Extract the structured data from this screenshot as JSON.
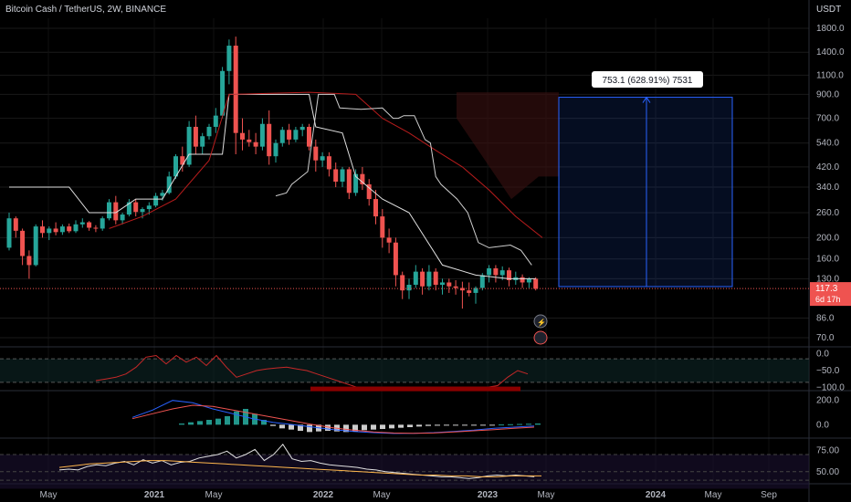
{
  "header": {
    "symbol_title": "Bitcoin Cash / TetherUS, 2W, BINANCE",
    "currency": "USDT"
  },
  "colors": {
    "background": "#000000",
    "up": "#26a69a",
    "down": "#ef5350",
    "grid": "#1a1a1a",
    "axis_text": "#b2b5be",
    "ichimoku_base": "#e0e0e0",
    "ichimoku_red": "#b71c1c",
    "projection": "#2962ff"
  },
  "chart_data": [
    {
      "type": "candlestick",
      "name": "price",
      "y_scale": "log",
      "y_ticks": [
        "1800.0",
        "1400.0",
        "1100.0",
        "900.0",
        "700.0",
        "540.0",
        "420.0",
        "340.0",
        "260.0",
        "200.0",
        "160.0",
        "130.0",
        "86.0",
        "70.0"
      ],
      "x_ticks": [
        "May",
        "2021",
        "May",
        "2022",
        "May",
        "2023",
        "May",
        "2024",
        "May",
        "Sep"
      ],
      "candles": [
        [
          180,
          260,
          175,
          245
        ],
        [
          245,
          250,
          200,
          215
        ],
        [
          215,
          220,
          150,
          165
        ],
        [
          165,
          175,
          130,
          150
        ],
        [
          150,
          230,
          148,
          225
        ],
        [
          225,
          240,
          200,
          210
        ],
        [
          210,
          225,
          195,
          220
        ],
        [
          220,
          235,
          205,
          212
        ],
        [
          212,
          230,
          206,
          225
        ],
        [
          225,
          232,
          210,
          214
        ],
        [
          214,
          240,
          210,
          230
        ],
        [
          230,
          245,
          222,
          235
        ],
        [
          235,
          238,
          215,
          222
        ],
        [
          222,
          228,
          212,
          220
        ],
        [
          220,
          250,
          215,
          245
        ],
        [
          245,
          300,
          240,
          290
        ],
        [
          290,
          310,
          230,
          240
        ],
        [
          240,
          260,
          230,
          255
        ],
        [
          255,
          300,
          250,
          290
        ],
        [
          290,
          300,
          250,
          262
        ],
        [
          262,
          275,
          245,
          270
        ],
        [
          270,
          290,
          255,
          280
        ],
        [
          280,
          320,
          275,
          310
        ],
        [
          310,
          330,
          295,
          320
        ],
        [
          320,
          400,
          315,
          380
        ],
        [
          380,
          480,
          370,
          470
        ],
        [
          470,
          520,
          400,
          430
        ],
        [
          430,
          680,
          420,
          640
        ],
        [
          640,
          720,
          480,
          520
        ],
        [
          520,
          600,
          480,
          580
        ],
        [
          580,
          660,
          560,
          640
        ],
        [
          640,
          780,
          600,
          720
        ],
        [
          720,
          1200,
          700,
          1150
        ],
        [
          1150,
          1600,
          1000,
          1500
        ],
        [
          1500,
          1650,
          480,
          600
        ],
        [
          600,
          700,
          500,
          560
        ],
        [
          560,
          620,
          520,
          545
        ],
        [
          545,
          600,
          480,
          520
        ],
        [
          520,
          700,
          500,
          660
        ],
        [
          660,
          760,
          430,
          470
        ],
        [
          470,
          560,
          440,
          540
        ],
        [
          540,
          640,
          520,
          620
        ],
        [
          620,
          660,
          530,
          560
        ],
        [
          560,
          640,
          545,
          620
        ],
        [
          620,
          660,
          580,
          640
        ],
        [
          640,
          660,
          500,
          520
        ],
        [
          520,
          560,
          400,
          450
        ],
        [
          450,
          490,
          420,
          470
        ],
        [
          470,
          490,
          380,
          410
        ],
        [
          410,
          440,
          340,
          360
        ],
        [
          360,
          420,
          340,
          410
        ],
        [
          410,
          420,
          300,
          320
        ],
        [
          320,
          410,
          310,
          390
        ],
        [
          390,
          420,
          330,
          350
        ],
        [
          350,
          370,
          280,
          300
        ],
        [
          300,
          330,
          230,
          250
        ],
        [
          250,
          270,
          180,
          200
        ],
        [
          200,
          220,
          170,
          190
        ],
        [
          190,
          200,
          120,
          135
        ],
        [
          135,
          140,
          105,
          115
        ],
        [
          115,
          130,
          105,
          122
        ],
        [
          122,
          150,
          118,
          140
        ],
        [
          140,
          145,
          110,
          120
        ],
        [
          120,
          150,
          115,
          140
        ],
        [
          140,
          145,
          115,
          122
        ],
        [
          122,
          130,
          110,
          125
        ],
        [
          125,
          130,
          112,
          120
        ],
        [
          120,
          128,
          110,
          118
        ],
        [
          118,
          126,
          95,
          115
        ],
        [
          115,
          125,
          108,
          112
        ],
        [
          112,
          120,
          100,
          118
        ],
        [
          118,
          138,
          115,
          135
        ],
        [
          135,
          150,
          125,
          145
        ],
        [
          145,
          150,
          125,
          135
        ],
        [
          135,
          148,
          128,
          142
        ],
        [
          142,
          146,
          120,
          128
        ],
        [
          128,
          140,
          122,
          132
        ],
        [
          132,
          136,
          118,
          125
        ],
        [
          125,
          132,
          118,
          130
        ],
        [
          130,
          132,
          115,
          117
        ]
      ],
      "base_line": [
        [
          0,
          340
        ],
        [
          9,
          340
        ],
        [
          12,
          260
        ],
        [
          16,
          260
        ],
        [
          19,
          300
        ],
        [
          23,
          300
        ],
        [
          27,
          480
        ],
        [
          32,
          480
        ],
        [
          33,
          900
        ],
        [
          36,
          900
        ],
        [
          37,
          900
        ],
        [
          45,
          900
        ],
        [
          46,
          640
        ],
        [
          50,
          600
        ],
        [
          52,
          380
        ],
        [
          56,
          300
        ],
        [
          60,
          260
        ],
        [
          65,
          150
        ],
        [
          70,
          135
        ],
        [
          75,
          130
        ],
        [
          79,
          130
        ]
      ],
      "lagging_line": [
        [
          50,
          310
        ],
        [
          52,
          320
        ],
        [
          53,
          350
        ],
        [
          56,
          400
        ],
        [
          58,
          900
        ],
        [
          59,
          900
        ],
        [
          61,
          900
        ],
        [
          62,
          780
        ],
        [
          66,
          770
        ],
        [
          70,
          780
        ],
        [
          72,
          700
        ],
        [
          73,
          700
        ],
        [
          74,
          720
        ],
        [
          76,
          720
        ],
        [
          78,
          560
        ],
        [
          79,
          540
        ],
        [
          80,
          380
        ],
        [
          81,
          350
        ],
        [
          84,
          300
        ],
        [
          86,
          260
        ],
        [
          88,
          190
        ],
        [
          90,
          180
        ],
        [
          94,
          185
        ],
        [
          96,
          175
        ],
        [
          98,
          150
        ]
      ],
      "red_line": [
        [
          15,
          220
        ],
        [
          20,
          250
        ],
        [
          25,
          300
        ],
        [
          30,
          450
        ],
        [
          33,
          900
        ],
        [
          45,
          920
        ],
        [
          52,
          900
        ],
        [
          56,
          700
        ],
        [
          60,
          600
        ],
        [
          64,
          500
        ],
        [
          68,
          420
        ],
        [
          72,
          330
        ],
        [
          76,
          250
        ],
        [
          80,
          200
        ]
      ],
      "last_price": "117.3",
      "countdown": "6d 17h",
      "projection": {
        "label": "753.1 (628.91%) 7531",
        "from_price": 119.7,
        "to_price": 872.8
      }
    },
    {
      "type": "line",
      "name": "oscillator-1",
      "y_ticks": [
        "0.0",
        "−50.0",
        "−100.0"
      ],
      "ylim": [
        -110,
        10
      ],
      "values": [
        -80,
        -75,
        -70,
        -60,
        -40,
        -10,
        -5,
        -30,
        -5,
        -25,
        -10,
        -35,
        -5,
        -40,
        -70,
        -60,
        -50,
        -45,
        -42,
        -40,
        -45,
        -50,
        -60,
        -70,
        -80,
        -90,
        -100,
        -100,
        -100,
        -100,
        -100,
        -100,
        -100,
        -100,
        -100,
        -100,
        -100,
        -100,
        -100,
        -100,
        -95,
        -70,
        -50,
        -60
      ]
    },
    {
      "type": "histogram",
      "name": "macd",
      "y_ticks": [
        "200.0",
        "0.0"
      ],
      "ylim": [
        -80,
        220
      ],
      "values": [
        10,
        20,
        30,
        40,
        50,
        70,
        110,
        130,
        90,
        40,
        -10,
        -30,
        -40,
        -50,
        -60,
        -55,
        -50,
        -55,
        -60,
        -55,
        -45,
        -40,
        -35,
        -30,
        -25,
        -20,
        -15,
        -10,
        -8,
        -6,
        -5,
        -4,
        -3,
        -2,
        -1,
        2,
        4,
        6,
        8,
        10
      ],
      "line_a": [
        60,
        120,
        200,
        180,
        130,
        90,
        50,
        20,
        0,
        -20,
        -40,
        -55,
        -65,
        -72,
        -70,
        -65,
        -55,
        -45,
        -30,
        -20,
        -10
      ],
      "line_b": [
        50,
        90,
        130,
        160,
        150,
        120,
        90,
        60,
        30,
        0,
        -25,
        -45,
        -60,
        -68,
        -70,
        -68,
        -60,
        -50,
        -40,
        -30,
        -20
      ]
    },
    {
      "type": "line",
      "name": "oscillator-3",
      "y_ticks": [
        "75.00",
        "50.00"
      ],
      "ylim": [
        38,
        85
      ],
      "values": [
        52,
        53,
        52,
        56,
        58,
        57,
        60,
        62,
        58,
        64,
        60,
        63,
        58,
        61,
        62,
        66,
        68,
        70,
        74,
        66,
        70,
        76,
        63,
        70,
        82,
        65,
        62,
        63,
        60,
        58,
        57,
        56,
        55,
        53,
        52,
        50,
        49,
        48,
        47,
        46,
        45,
        44,
        44,
        43,
        42,
        43,
        45,
        46,
        45,
        46,
        45,
        44
      ],
      "signal": [
        55,
        57,
        59,
        60,
        61,
        62,
        63,
        63,
        62,
        61,
        60,
        59,
        58,
        57,
        56,
        55,
        54,
        53,
        52,
        51,
        50,
        49,
        48,
        47,
        46,
        46,
        45,
        45,
        44,
        44,
        45,
        45,
        45
      ]
    }
  ]
}
